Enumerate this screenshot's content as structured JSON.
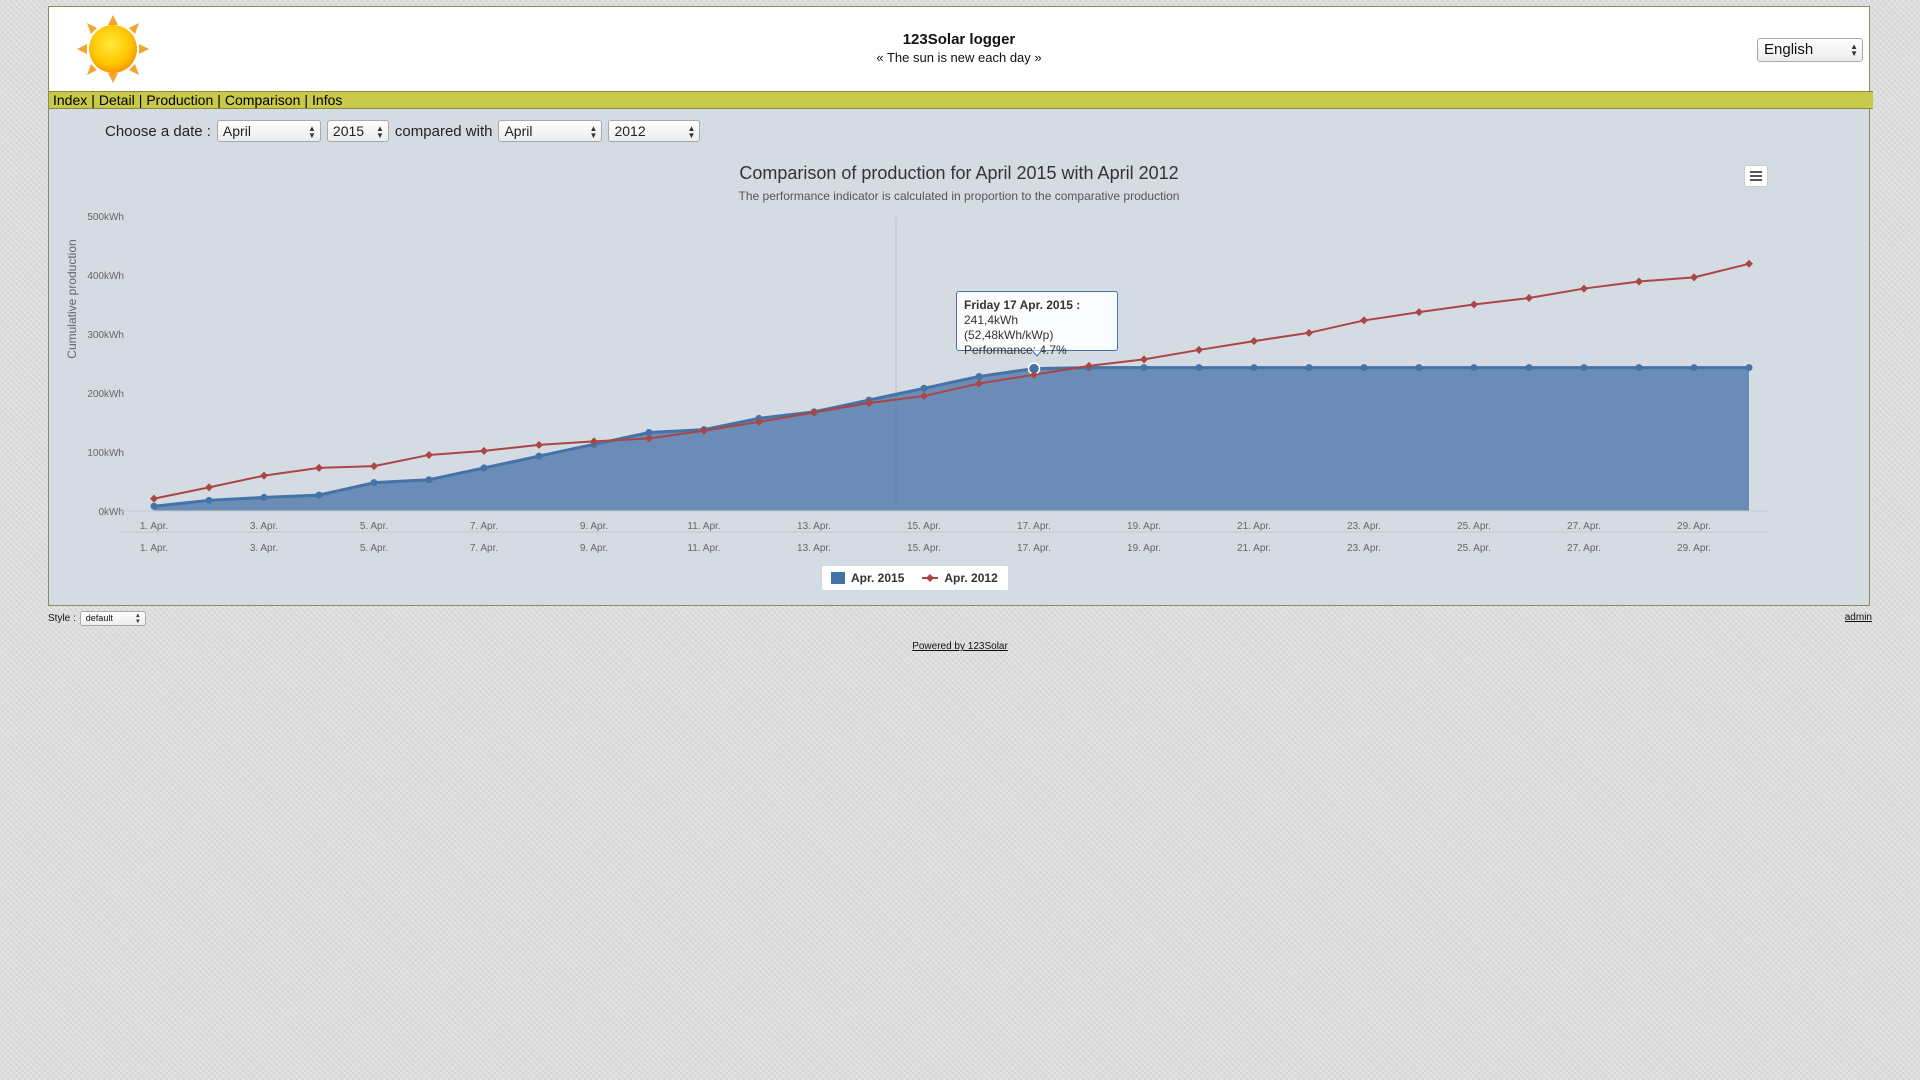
{
  "header": {
    "title": "123Solar logger",
    "subtitle": "« The sun is new each day »",
    "language": "English"
  },
  "menu": {
    "items": [
      {
        "label": "Index"
      },
      {
        "label": "Detail"
      },
      {
        "label": "Production"
      },
      {
        "label": "Comparison"
      },
      {
        "label": "Infos"
      }
    ]
  },
  "datebar": {
    "choose_label": "Choose a date :",
    "month": "April",
    "year": "2015",
    "compared_label": "compared with",
    "compare_month": "April",
    "compare_year": "2012"
  },
  "tooltip": {
    "date": "Friday 17 Apr. 2015 :",
    "value": "241,4kWh (52,48kWh/kWp)",
    "performance": "Performance: 4.7%"
  },
  "footer": {
    "style_label": "Style :",
    "style_value": "default",
    "admin": "admin",
    "powered": "Powered by 123Solar"
  },
  "colors": {
    "series_2015": "#4572a7",
    "series_2012": "#aa4643",
    "menubar": "#c8c84a"
  },
  "chart_data": {
    "type": "area",
    "title": "Comparison of production for April 2015 with April 2012",
    "subtitle": "The performance indicator is calculated in proportion to the comparative production",
    "ylabel": "Cumulative production",
    "ylim": [
      0,
      500
    ],
    "y_ticks": [
      "0kWh",
      "100kWh",
      "200kWh",
      "300kWh",
      "400kWh",
      "500kWh"
    ],
    "x": [
      1,
      2,
      3,
      4,
      5,
      6,
      7,
      8,
      9,
      10,
      11,
      12,
      13,
      14,
      15,
      16,
      17,
      18,
      19,
      20,
      21,
      22,
      23,
      24,
      25,
      26,
      27,
      28,
      29,
      30
    ],
    "x_ticks": [
      "1. Apr.",
      "3. Apr.",
      "5. Apr.",
      "7. Apr.",
      "9. Apr.",
      "11. Apr.",
      "13. Apr.",
      "15. Apr.",
      "17. Apr.",
      "19. Apr.",
      "21. Apr.",
      "23. Apr.",
      "25. Apr.",
      "27. Apr.",
      "29. Apr."
    ],
    "series": [
      {
        "name": "Apr. 2015",
        "type": "area",
        "values": [
          8,
          18,
          23,
          27,
          48,
          53,
          73,
          93,
          113,
          133,
          138,
          157,
          168,
          188,
          208,
          228,
          241.4,
          243,
          243,
          243,
          243,
          243,
          243,
          243,
          243,
          243,
          243,
          243,
          243,
          243
        ]
      },
      {
        "name": "Apr. 2012",
        "type": "line",
        "values": [
          21,
          40,
          60,
          73,
          76,
          95,
          102,
          112,
          118,
          123,
          136,
          151,
          167,
          183,
          195,
          216,
          231,
          246,
          257,
          273,
          288,
          302,
          323,
          337,
          350,
          361,
          377,
          389,
          396,
          419
        ]
      }
    ],
    "legend": "bottom-center",
    "grid": false
  }
}
